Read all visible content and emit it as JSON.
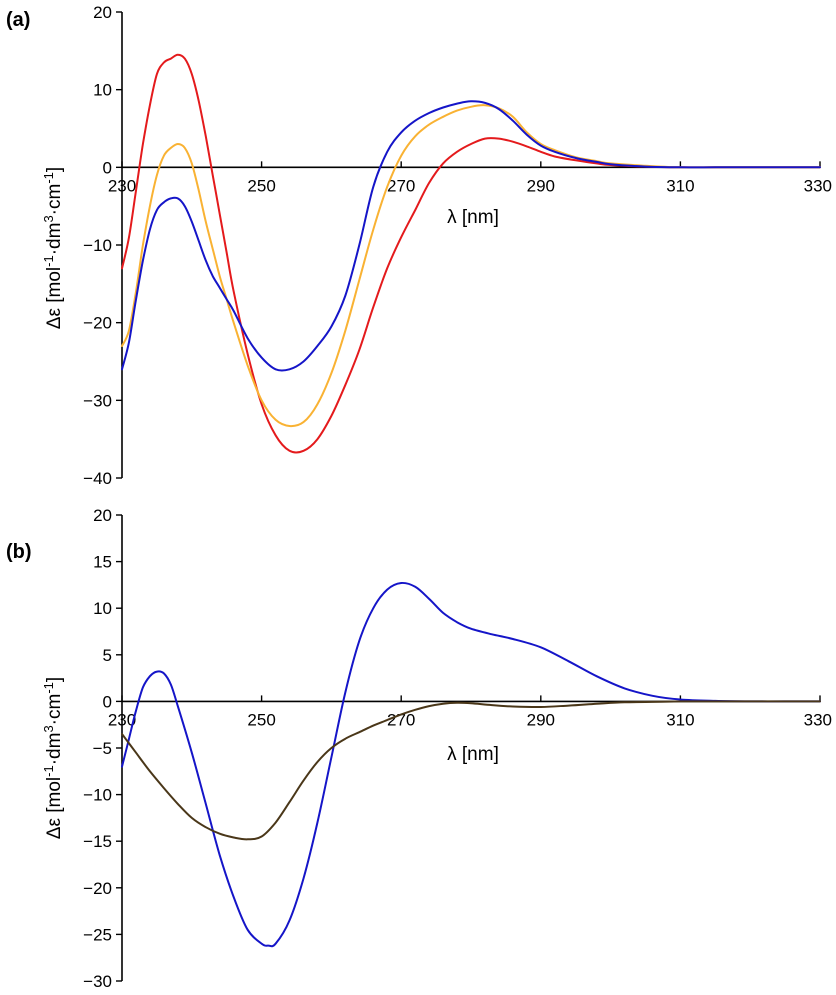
{
  "chart_data": [
    {
      "type": "line",
      "panel_label": "(a)",
      "xlabel": "λ [nm]",
      "ylabel_prefix": "Δε [mol",
      "ylabel_sup1": "-1",
      "ylabel_mid": "·dm",
      "ylabel_sup2": "3",
      "ylabel_mid2": "·cm",
      "ylabel_sup3": "-1",
      "ylabel_suffix": "]",
      "xlim": [
        230,
        330
      ],
      "ylim": [
        -40,
        20
      ],
      "xticks": [
        230,
        250,
        270,
        290,
        310,
        330
      ],
      "xtick_labels": [
        "230",
        "250",
        "270",
        "290",
        "310",
        "330"
      ],
      "yticks": [
        20,
        10,
        0,
        -10,
        -20,
        -30,
        -40
      ],
      "ytick_labels": [
        "20",
        "10",
        "0",
        "−10",
        "−20",
        "−30",
        "−40"
      ],
      "series": [
        {
          "name": "red",
          "color": "#e41a1c",
          "x": [
            230,
            231,
            232,
            233,
            234,
            235,
            236,
            237,
            238,
            239,
            240,
            241,
            242,
            243,
            244,
            245,
            246,
            248,
            250,
            252,
            254,
            256,
            258,
            260,
            262,
            264,
            266,
            268,
            270,
            272,
            274,
            276,
            278,
            280,
            282,
            284,
            286,
            288,
            290,
            292,
            295,
            298,
            300,
            305,
            310,
            315,
            320,
            325,
            330
          ],
          "y": [
            -13,
            -9,
            -3,
            3,
            8,
            12,
            13.5,
            14,
            14.5,
            14,
            12,
            8.5,
            4,
            -1,
            -6,
            -11,
            -16,
            -24,
            -30.5,
            -34.5,
            -36.5,
            -36.5,
            -35,
            -32,
            -28,
            -23.5,
            -18,
            -13,
            -9,
            -5.5,
            -2,
            0.5,
            2,
            3,
            3.7,
            3.7,
            3.3,
            2.7,
            2,
            1.4,
            0.9,
            0.5,
            0.3,
            0.1,
            0,
            0,
            0,
            0,
            0
          ]
        },
        {
          "name": "orange",
          "color": "#f9b233",
          "x": [
            230,
            231,
            232,
            233,
            234,
            235,
            236,
            237,
            238,
            239,
            240,
            241,
            242,
            243,
            244,
            245,
            246,
            248,
            250,
            252,
            254,
            256,
            258,
            260,
            262,
            264,
            266,
            268,
            270,
            272,
            274,
            276,
            278,
            280,
            282,
            284,
            286,
            288,
            290,
            292,
            295,
            298,
            300,
            305,
            310,
            315,
            320,
            325,
            330
          ],
          "y": [
            -23,
            -21,
            -16,
            -10,
            -5,
            -1,
            1.5,
            2.5,
            3,
            2.5,
            0.5,
            -3,
            -7,
            -10.5,
            -14,
            -17,
            -20,
            -25.5,
            -30,
            -32.5,
            -33.3,
            -32.8,
            -30.5,
            -26.5,
            -21,
            -14.5,
            -8,
            -2.5,
            1.5,
            4,
            5.5,
            6.5,
            7.3,
            7.8,
            8,
            7.6,
            6.5,
            4.5,
            3,
            2.2,
            1.3,
            0.8,
            0.5,
            0.2,
            0,
            0,
            0,
            0,
            0
          ]
        },
        {
          "name": "blue",
          "color": "#1515c8",
          "x": [
            230,
            231,
            232,
            233,
            234,
            235,
            236,
            237,
            238,
            239,
            240,
            241,
            242,
            243,
            244,
            245,
            246,
            248,
            250,
            252,
            254,
            256,
            258,
            260,
            262,
            264,
            266,
            268,
            270,
            272,
            274,
            276,
            278,
            280,
            282,
            284,
            286,
            288,
            290,
            292,
            295,
            298,
            300,
            305,
            310,
            315,
            320,
            325,
            330
          ],
          "y": [
            -26,
            -22.5,
            -17,
            -12,
            -8,
            -5.5,
            -4.5,
            -4,
            -4,
            -5,
            -7,
            -9.5,
            -12,
            -14,
            -15.5,
            -17,
            -18.5,
            -22,
            -24.5,
            -26,
            -26,
            -25,
            -23,
            -20.5,
            -16.5,
            -10,
            -2.5,
            2,
            4.5,
            6,
            7,
            7.7,
            8.2,
            8.5,
            8.3,
            7.5,
            6,
            4.2,
            2.8,
            2,
            1.2,
            0.7,
            0.4,
            0.1,
            0,
            0,
            0,
            0,
            0
          ]
        }
      ]
    },
    {
      "type": "line",
      "panel_label": "(b)",
      "xlabel": "λ [nm]",
      "ylabel_prefix": "Δε [mol",
      "ylabel_sup1": "-1",
      "ylabel_mid": "·dm",
      "ylabel_sup2": "3",
      "ylabel_mid2": "·cm",
      "ylabel_sup3": "-1",
      "ylabel_suffix": "]",
      "xlim": [
        230,
        330
      ],
      "ylim": [
        -30,
        20
      ],
      "xticks": [
        230,
        250,
        270,
        290,
        310,
        330
      ],
      "xtick_labels": [
        "230",
        "250",
        "270",
        "290",
        "310",
        "330"
      ],
      "yticks": [
        20,
        15,
        10,
        5,
        0,
        -5,
        -10,
        -15,
        -20,
        -25,
        -30
      ],
      "ytick_labels": [
        "20",
        "15",
        "10",
        "5",
        "0",
        "−5",
        "−10",
        "−15",
        "−20",
        "−25",
        "−30"
      ],
      "series": [
        {
          "name": "blue",
          "color": "#1515c8",
          "x": [
            230,
            231,
            232,
            233,
            234,
            235,
            236,
            237,
            238,
            240,
            242,
            244,
            246,
            248,
            250,
            251,
            252,
            254,
            256,
            258,
            260,
            262,
            264,
            266,
            268,
            270,
            272,
            274,
            276,
            278,
            280,
            283,
            286,
            290,
            294,
            298,
            302,
            306,
            310,
            315,
            320,
            325,
            330
          ],
          "y": [
            -7,
            -4,
            -1,
            1.5,
            2.7,
            3.2,
            3,
            1.8,
            -0.5,
            -5.5,
            -11,
            -16.5,
            -21,
            -24.5,
            -26,
            -26.2,
            -26,
            -23.5,
            -19,
            -13,
            -6,
            1,
            6.5,
            10,
            12,
            12.7,
            12.3,
            11,
            9.5,
            8.5,
            7.8,
            7.2,
            6.7,
            5.8,
            4.3,
            2.7,
            1.4,
            0.6,
            0.2,
            0.05,
            0,
            0,
            0
          ]
        },
        {
          "name": "brown",
          "color": "#4a3719",
          "x": [
            230,
            232,
            234,
            236,
            238,
            240,
            242,
            244,
            246,
            248,
            250,
            252,
            254,
            256,
            258,
            260,
            262,
            264,
            266,
            268,
            270,
            272,
            274,
            276,
            278,
            280,
            283,
            286,
            290,
            294,
            298,
            302,
            306,
            310,
            315,
            320,
            325,
            330
          ],
          "y": [
            -3.5,
            -5.5,
            -7.5,
            -9.3,
            -11,
            -12.5,
            -13.5,
            -14.2,
            -14.6,
            -14.8,
            -14.5,
            -13,
            -10.8,
            -8.5,
            -6.5,
            -5,
            -4,
            -3.3,
            -2.6,
            -2,
            -1.4,
            -0.9,
            -0.5,
            -0.25,
            -0.15,
            -0.2,
            -0.4,
            -0.55,
            -0.6,
            -0.45,
            -0.25,
            -0.1,
            -0.05,
            0,
            0,
            0,
            0,
            0
          ]
        }
      ]
    }
  ]
}
